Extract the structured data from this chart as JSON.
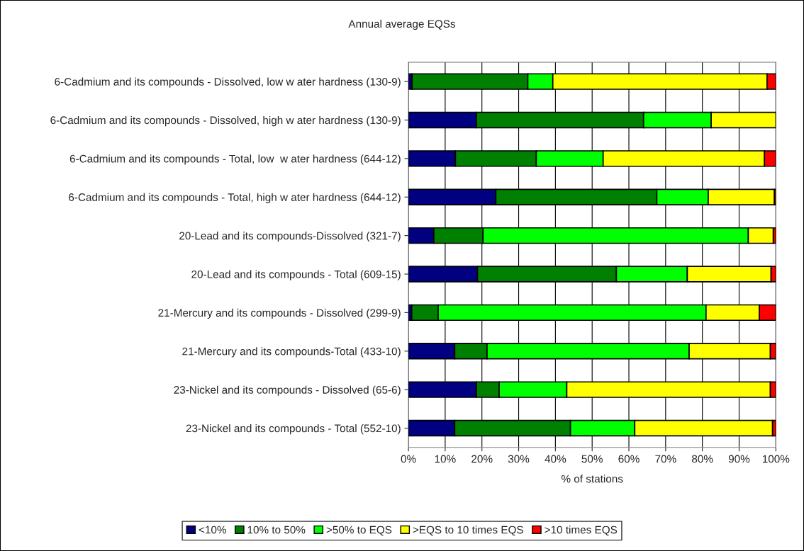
{
  "chart_data": {
    "type": "bar",
    "orientation": "horizontal",
    "stacked": true,
    "title": "Annual average EQSs",
    "xlabel": "% of stations",
    "categories": [
      "6-Cadmium and its compounds - Dissolved, low w ater hardness (130-9)",
      "6-Cadmium and its compounds - Dissolved, high w ater hardness (130-9)",
      "6-Cadmium and its compounds - Total, low  w ater hardness (644-12)",
      "6-Cadmium and its compounds - Total, high w ater hardness (644-12)",
      "20-Lead and its compounds-Dissolved (321-7)",
      "20-Lead and its compounds - Total (609-15)",
      "21-Mercury and its compounds - Dissolved (299-9)",
      "21-Mercury and its compounds-Total (433-10)",
      "23-Nickel and its compounds - Dissolved (65-6)",
      "23-Nickel and its compounds - Total (552-10)"
    ],
    "series": [
      {
        "name": "<10%",
        "color": "#000080",
        "values": [
          1.0,
          18.5,
          12.8,
          23.8,
          6.9,
          18.8,
          0.9,
          12.6,
          18.5,
          12.6
        ]
      },
      {
        "name": "10% to 50%",
        "color": "#008000",
        "values": [
          31.5,
          45.5,
          22.0,
          43.8,
          13.4,
          37.8,
          7.2,
          8.8,
          6.2,
          31.5
        ]
      },
      {
        "name": ">50% to EQS",
        "color": "#00ff00",
        "values": [
          6.8,
          18.4,
          18.2,
          14.0,
          72.2,
          19.3,
          72.9,
          55.0,
          18.4,
          17.5
        ]
      },
      {
        "name": ">EQS to 10 times EQS",
        "color": "#ffff00",
        "values": [
          58.3,
          17.6,
          43.9,
          18.0,
          6.8,
          22.8,
          14.5,
          22.1,
          55.4,
          37.5
        ]
      },
      {
        "name": ">10 times EQS",
        "color": "#ff0000",
        "values": [
          2.4,
          null,
          3.1,
          0.4,
          0.7,
          1.3,
          4.5,
          1.5,
          1.5,
          0.9
        ]
      }
    ],
    "xlim": [
      0,
      100
    ],
    "xticks": [
      {
        "value": 0,
        "label": "0%"
      },
      {
        "value": 10,
        "label": "10%"
      },
      {
        "value": 20,
        "label": "20%"
      },
      {
        "value": 30,
        "label": "30%"
      },
      {
        "value": 40,
        "label": "40%"
      },
      {
        "value": 50,
        "label": "50%"
      },
      {
        "value": 60,
        "label": "60%"
      },
      {
        "value": 70,
        "label": "70%"
      },
      {
        "value": 80,
        "label": "80%"
      },
      {
        "value": 90,
        "label": "90%"
      },
      {
        "value": 100,
        "label": "100%"
      }
    ],
    "grid": "x",
    "legend": "bottom"
  }
}
